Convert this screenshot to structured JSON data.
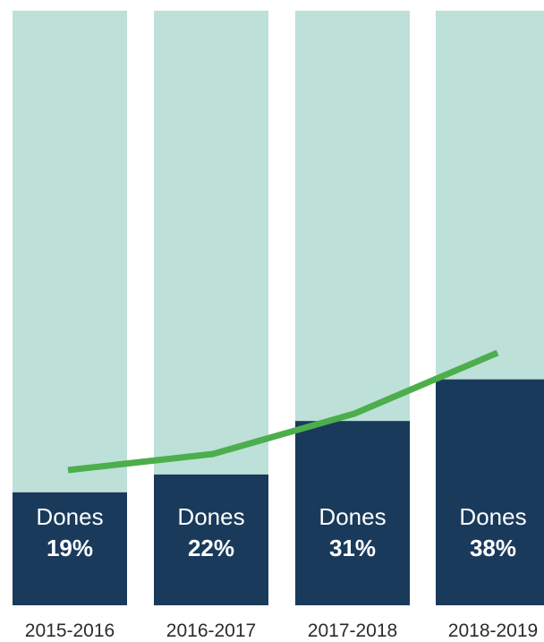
{
  "chart_data": {
    "type": "bar",
    "stacked": true,
    "categories": [
      "2015-2016",
      "2016-2017",
      "2017-2018",
      "2018-2019"
    ],
    "series": [
      {
        "name": "Dones",
        "values": [
          19,
          22,
          31,
          38
        ],
        "color": "#1a3a5c"
      },
      {
        "values": [
          81,
          78,
          69,
          62
        ],
        "color": "#bde0d8"
      }
    ],
    "bar_label_text": "Dones",
    "bar_labels": [
      "19%",
      "22%",
      "31%",
      "38%"
    ],
    "trend_line": {
      "values": [
        19,
        22,
        31,
        38
      ],
      "color": "#4cae4c"
    },
    "ylim": [
      0,
      100
    ],
    "title": "",
    "xlabel": "",
    "ylabel": "",
    "grid": false,
    "legend": "none"
  }
}
